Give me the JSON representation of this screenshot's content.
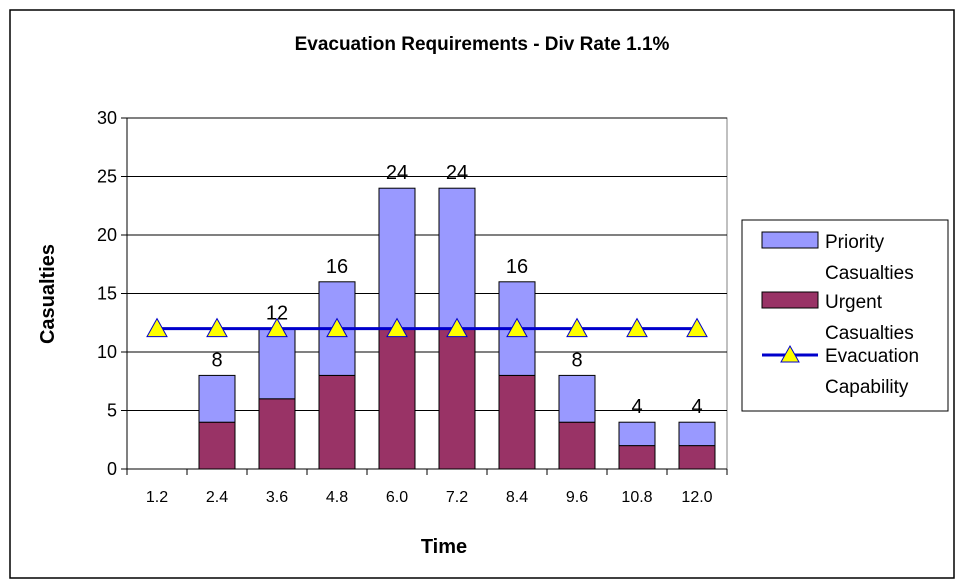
{
  "chart_data": {
    "type": "bar",
    "stacked": true,
    "title": "Evacuation Requirements - Div Rate 1.1%",
    "xlabel": "Time",
    "ylabel": "Casualties",
    "ylim": [
      0,
      30
    ],
    "yticks": [
      0,
      5,
      10,
      15,
      20,
      25,
      30
    ],
    "grid": true,
    "legend_position": "right",
    "categories": [
      "1.2",
      "2.4",
      "3.6",
      "4.8",
      "6.0",
      "7.2",
      "8.4",
      "9.6",
      "10.8",
      "12.0"
    ],
    "series": [
      {
        "name": "Urgent Casualties",
        "kind": "bar",
        "color": "#993366",
        "values": [
          0,
          4,
          6,
          8,
          12,
          12,
          8,
          4,
          2,
          2
        ]
      },
      {
        "name": "Priority Casualties",
        "kind": "bar",
        "color": "#9999ff",
        "values": [
          0,
          4,
          6,
          8,
          12,
          12,
          8,
          4,
          2,
          2
        ]
      },
      {
        "name": "Evacuation Capability",
        "kind": "line",
        "color": "#0000cc",
        "marker": "triangle",
        "marker_color": "#ffff00",
        "values": [
          12,
          12,
          12,
          12,
          12,
          12,
          12,
          12,
          12,
          12
        ]
      }
    ],
    "data_labels": [
      "",
      "8",
      "12",
      "16",
      "24",
      "24",
      "16",
      "8",
      "4",
      "4"
    ],
    "legend_lines": {
      "priority": [
        "Priority",
        "Casualties"
      ],
      "urgent": [
        "Urgent",
        "Casualties"
      ],
      "evac": [
        "Evacuation",
        "Capability"
      ]
    }
  }
}
